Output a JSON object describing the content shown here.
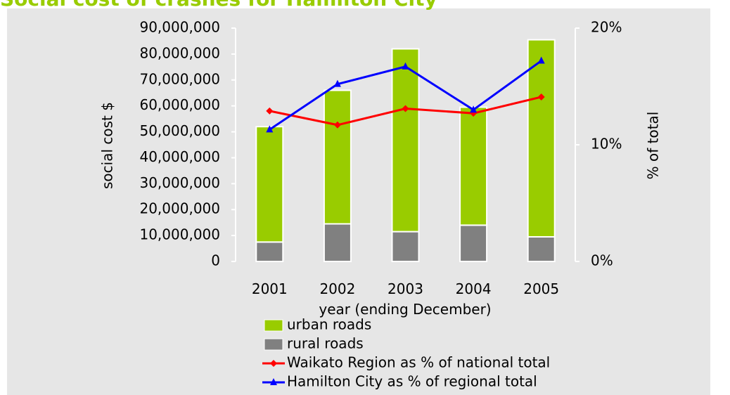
{
  "chart_data": {
    "type": "bar",
    "title": "Social cost of crashes for Hamilton City",
    "categories": [
      "2001",
      "2002",
      "2003",
      "2004",
      "2005"
    ],
    "series": [
      {
        "name": "urban roads",
        "color": "#99cc00",
        "type": "bar",
        "values": [
          44500000,
          51500000,
          70500000,
          45500000,
          76000000
        ]
      },
      {
        "name": "rural roads",
        "color": "#808080",
        "type": "bar",
        "values": [
          7500000,
          14500000,
          11500000,
          14000000,
          9500000
        ]
      },
      {
        "name": "Waikato Region as % of national total",
        "color": "#ff0000",
        "type": "line",
        "marker": "diamond",
        "axis": "y2",
        "values": [
          12.9,
          11.7,
          13.1,
          12.7,
          14.1
        ]
      },
      {
        "name": "Hamilton City as % of regional total",
        "color": "#0000ff",
        "type": "line",
        "marker": "triangle",
        "axis": "y2",
        "values": [
          11.3,
          15.2,
          16.7,
          13.0,
          17.2
        ]
      }
    ],
    "xlabel": "year (ending December)",
    "ylabel": "social cost $",
    "y2label": "% of total",
    "ylim": [
      0,
      90000000
    ],
    "yticks": [
      0,
      {
        "value": 10000000,
        "label": "10,000,000"
      },
      {
        "value": 20000000,
        "label": "20,000,000"
      },
      {
        "value": 30000000,
        "label": "30,000,000"
      },
      {
        "value": 40000000,
        "label": "40,000,000"
      },
      {
        "value": 50000000,
        "label": "50,000,000"
      },
      {
        "value": 60000000,
        "label": "60,000,000"
      },
      {
        "value": 70000000,
        "label": "70,000,000"
      },
      {
        "value": 80000000,
        "label": "80,000,000"
      },
      {
        "value": 90000000,
        "label": "90,000,000"
      }
    ],
    "y2lim": [
      0,
      20
    ],
    "y2ticks": [
      {
        "value": 0,
        "label": "0%"
      },
      {
        "value": 10,
        "label": "10%"
      },
      {
        "value": 20,
        "label": "20%"
      }
    ],
    "legend": "bottom"
  }
}
